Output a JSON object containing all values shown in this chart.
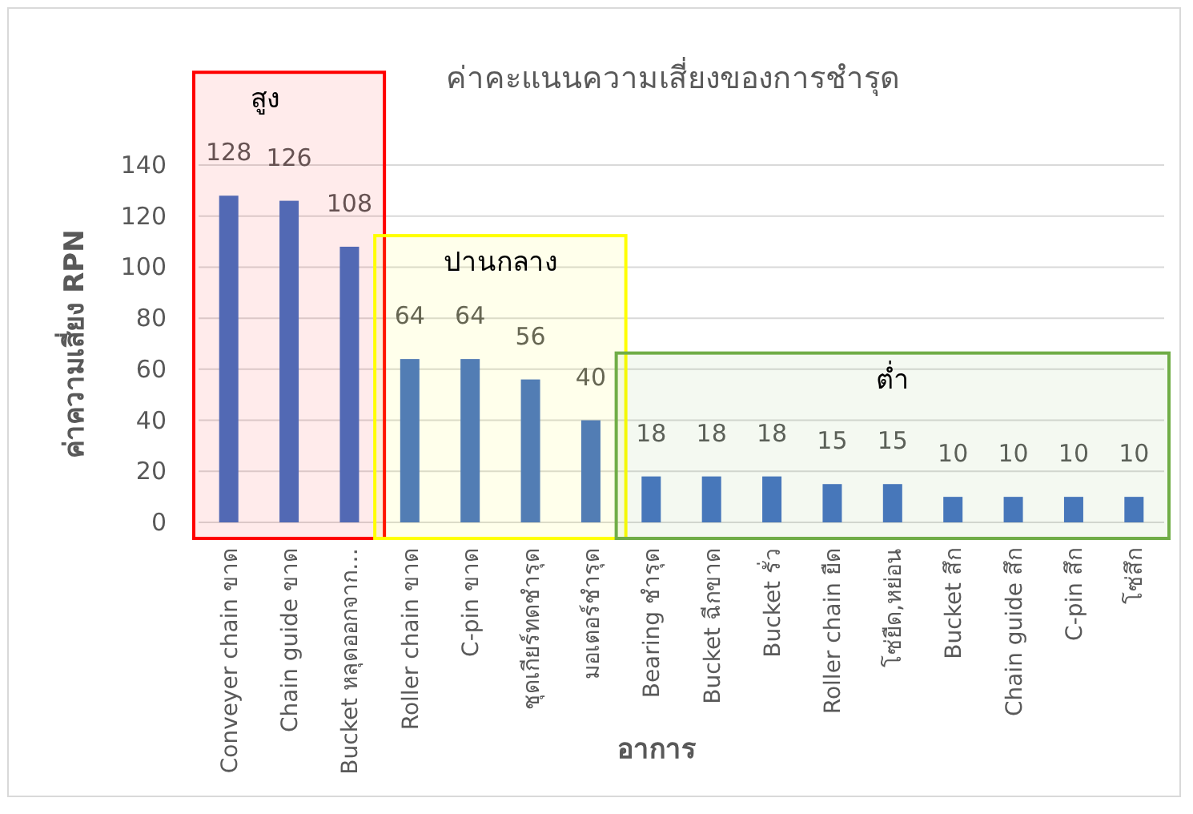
{
  "chart_data": {
    "type": "bar",
    "title": "ค่าคะแนนความเสี่ยงของการชำรุด",
    "xlabel": "อาการ",
    "ylabel": "ค่าความเสี่ยง RPN",
    "categories": [
      "Conveyer chain ขาด",
      "Chain guide ขาด",
      "Bucket หลุดออกจาก…",
      "Roller chain ขาด",
      "C-pin ขาด",
      "ชุดเกียร์ทดชำรุด",
      "มอเตอร์ชำรุด",
      "Bearing ชำรุด",
      "Bucket ฉีกขาด",
      "Bucket รั่ว",
      "Roller chain ยืด",
      "โซ่ยืด,หย่อน",
      "Bucket สึก",
      "Chain guide สึก",
      "C-pin สึก",
      "โซ่สึก"
    ],
    "series": [
      {
        "color": "#4472c4",
        "values": [
          128,
          126,
          108,
          64,
          64,
          56,
          40,
          18,
          18,
          18,
          15,
          15,
          10,
          10,
          10,
          10
        ]
      }
    ],
    "ylim": [
      0,
      140
    ],
    "yticks": [
      0,
      20,
      40,
      60,
      80,
      100,
      120,
      140
    ],
    "grid": "y",
    "data_labels": true,
    "bands": [
      {
        "axis": "x",
        "from": "Conveyer chain ขาด",
        "to": "Bucket หลุดออกจาก…",
        "label": "สูง",
        "color": "#ff0000"
      },
      {
        "axis": "x",
        "from": "Roller chain ขาด",
        "to": "มอเตอร์ชำรุด",
        "label": "ปานกลาง",
        "color": "#ffff00"
      },
      {
        "axis": "x",
        "from": "Bearing ชำรุด",
        "to": "โซ่สึก",
        "label": "ต่ำ",
        "color": "#70ad47"
      }
    ]
  }
}
